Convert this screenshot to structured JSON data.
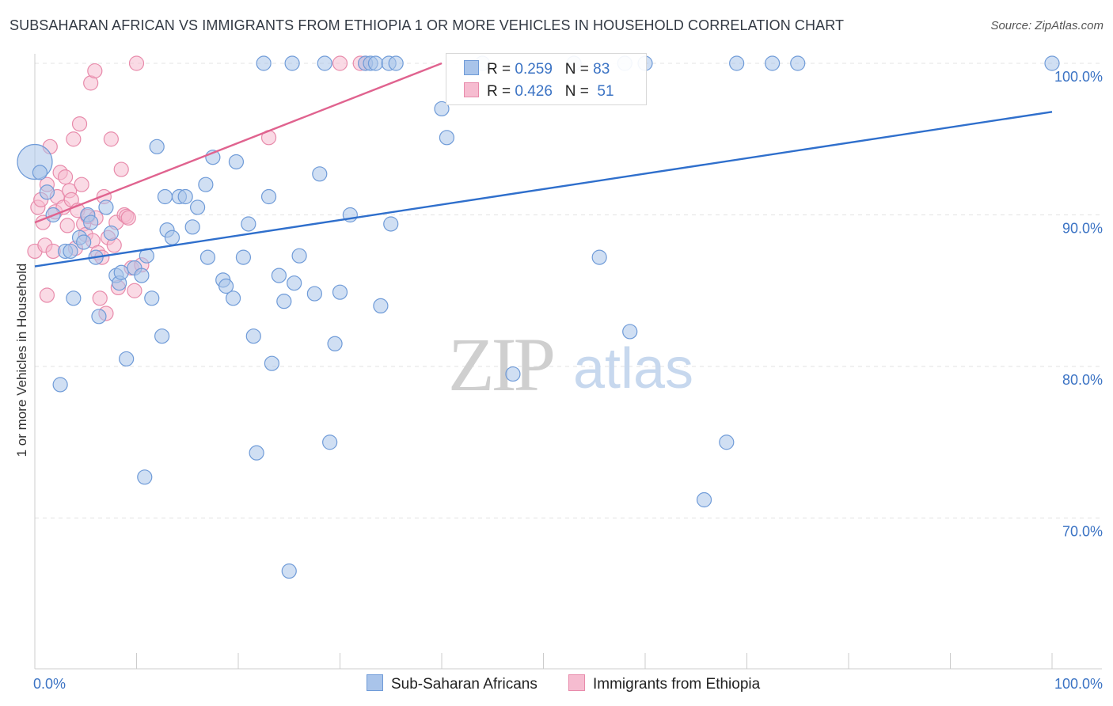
{
  "header": {
    "title": "SUBSAHARAN AFRICAN VS IMMIGRANTS FROM ETHIOPIA 1 OR MORE VEHICLES IN HOUSEHOLD CORRELATION CHART",
    "source": "Source: ZipAtlas.com"
  },
  "watermark": {
    "zip": "ZIP",
    "atlas": "atlas"
  },
  "chart_data": {
    "type": "scatter",
    "title": "SUBSAHARAN AFRICAN VS IMMIGRANTS FROM ETHIOPIA 1 OR MORE VEHICLES IN HOUSEHOLD CORRELATION CHART",
    "xlabel": "",
    "ylabel": "1 or more Vehicles in Household",
    "xlim": [
      0,
      100
    ],
    "ylim": [
      60,
      100
    ],
    "x_tick_labels": [
      "0.0%",
      "100.0%"
    ],
    "y_ticks": [
      70,
      80,
      90,
      100
    ],
    "y_tick_labels": [
      "70.0%",
      "80.0%",
      "90.0%",
      "100.0%"
    ],
    "grid": true,
    "legend_position": "top-center",
    "colors": {
      "blue_fill": "#a9c4ea",
      "blue_stroke": "#6f9bd8",
      "blue_line": "#2f6fcc",
      "pink_fill": "#f6bcd0",
      "pink_stroke": "#e88bab",
      "pink_line": "#e0638f",
      "tick_label": "#3b73c4"
    },
    "series": [
      {
        "name": "Sub-Saharan Africans",
        "r": "0.259",
        "n": "83",
        "trend": [
          [
            0,
            86.6
          ],
          [
            100,
            96.8
          ]
        ],
        "points": [
          [
            0,
            93.5
          ],
          [
            0.5,
            92.8
          ],
          [
            1.2,
            91.5
          ],
          [
            1.8,
            90.0
          ],
          [
            2.5,
            78.8
          ],
          [
            3,
            87.6
          ],
          [
            3.5,
            87.6
          ],
          [
            3.8,
            84.5
          ],
          [
            4.4,
            88.5
          ],
          [
            4.8,
            88.2
          ],
          [
            5.2,
            90.0
          ],
          [
            5.5,
            89.5
          ],
          [
            6,
            87.2
          ],
          [
            6.3,
            83.3
          ],
          [
            7,
            90.5
          ],
          [
            7.5,
            88.8
          ],
          [
            8,
            86.0
          ],
          [
            8.3,
            85.5
          ],
          [
            8.5,
            86.2
          ],
          [
            9,
            80.5
          ],
          [
            9.8,
            86.5
          ],
          [
            10.5,
            86.0
          ],
          [
            10.8,
            72.7
          ],
          [
            11,
            87.3
          ],
          [
            11.5,
            84.5
          ],
          [
            12,
            94.5
          ],
          [
            12.5,
            82.0
          ],
          [
            12.8,
            91.2
          ],
          [
            13,
            89.0
          ],
          [
            13.5,
            88.5
          ],
          [
            14.2,
            91.2
          ],
          [
            14.8,
            91.2
          ],
          [
            15.5,
            89.2
          ],
          [
            16,
            90.5
          ],
          [
            16.8,
            92.0
          ],
          [
            17,
            87.2
          ],
          [
            17.5,
            93.8
          ],
          [
            18.5,
            85.7
          ],
          [
            18.8,
            85.3
          ],
          [
            19.5,
            84.5
          ],
          [
            19.8,
            93.5
          ],
          [
            20.5,
            87.2
          ],
          [
            21,
            89.4
          ],
          [
            21.5,
            82.0
          ],
          [
            21.8,
            74.3
          ],
          [
            22.5,
            100
          ],
          [
            23,
            91.2
          ],
          [
            23.3,
            80.2
          ],
          [
            24,
            86.0
          ],
          [
            24.5,
            84.3
          ],
          [
            25,
            66.5
          ],
          [
            25.3,
            100
          ],
          [
            25.5,
            85.5
          ],
          [
            26,
            87.3
          ],
          [
            27.5,
            84.8
          ],
          [
            28,
            92.7
          ],
          [
            28.5,
            100
          ],
          [
            29,
            75.0
          ],
          [
            29.5,
            81.5
          ],
          [
            30,
            84.9
          ],
          [
            31,
            90.0
          ],
          [
            32.5,
            100
          ],
          [
            33,
            100
          ],
          [
            33.5,
            100
          ],
          [
            34,
            84.0
          ],
          [
            34.8,
            100
          ],
          [
            35,
            89.4
          ],
          [
            35.5,
            100
          ],
          [
            40,
            97.0
          ],
          [
            40.5,
            95.1
          ],
          [
            44,
            100
          ],
          [
            47,
            79.5
          ],
          [
            53,
            100
          ],
          [
            55.5,
            87.2
          ],
          [
            58,
            100
          ],
          [
            58.5,
            82.3
          ],
          [
            60,
            100
          ],
          [
            65.8,
            71.2
          ],
          [
            68,
            75.0
          ],
          [
            69,
            100
          ],
          [
            72.5,
            100
          ],
          [
            75,
            100
          ],
          [
            100,
            100
          ]
        ]
      },
      {
        "name": "Immigrants from Ethiopia",
        "r": "0.426",
        "n": "51",
        "trend": [
          [
            0,
            89.5
          ],
          [
            40,
            100
          ]
        ],
        "points": [
          [
            0,
            87.6
          ],
          [
            0.3,
            90.5
          ],
          [
            0.6,
            91.0
          ],
          [
            0.8,
            89.5
          ],
          [
            1,
            88.0
          ],
          [
            1.2,
            92.0
          ],
          [
            1.5,
            94.5
          ],
          [
            1.8,
            87.6
          ],
          [
            2,
            90.2
          ],
          [
            2.2,
            91.2
          ],
          [
            2.5,
            92.8
          ],
          [
            2.8,
            90.5
          ],
          [
            3,
            92.5
          ],
          [
            3.2,
            89.3
          ],
          [
            3.4,
            91.6
          ],
          [
            3.6,
            91.0
          ],
          [
            3.8,
            95.0
          ],
          [
            4,
            87.8
          ],
          [
            4.2,
            90.3
          ],
          [
            4.4,
            96.0
          ],
          [
            4.6,
            92.0
          ],
          [
            4.8,
            89.4
          ],
          [
            5,
            88.7
          ],
          [
            5.2,
            89.9
          ],
          [
            5.5,
            98.7
          ],
          [
            5.7,
            88.3
          ],
          [
            5.9,
            99.5
          ],
          [
            6,
            89.8
          ],
          [
            6.2,
            87.5
          ],
          [
            6.4,
            84.5
          ],
          [
            6.6,
            87.2
          ],
          [
            6.8,
            91.2
          ],
          [
            7,
            83.5
          ],
          [
            7.2,
            88.5
          ],
          [
            7.5,
            95.0
          ],
          [
            7.8,
            88.0
          ],
          [
            8,
            89.5
          ],
          [
            8.2,
            85.2
          ],
          [
            8.5,
            93.0
          ],
          [
            8.8,
            90.0
          ],
          [
            9,
            89.9
          ],
          [
            9.2,
            89.8
          ],
          [
            9.5,
            86.5
          ],
          [
            9.8,
            85.0
          ],
          [
            10,
            100
          ],
          [
            10.5,
            86.7
          ],
          [
            23,
            95.1
          ],
          [
            30,
            100
          ],
          [
            32,
            100
          ],
          [
            32.5,
            100
          ],
          [
            1.2,
            84.7
          ]
        ]
      }
    ]
  }
}
